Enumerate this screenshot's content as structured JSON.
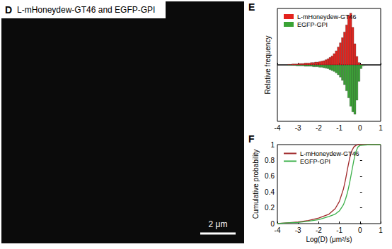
{
  "panel_d": {
    "label": "D",
    "title": "L-mHoneydew-GT46 and EGFP-GPI",
    "scale_bar": "2 μm"
  },
  "chart_data": [
    {
      "type": "histogram",
      "annotations": [
        "E"
      ],
      "y_label": "Relative frequency",
      "bins": [
        -3.5,
        -3.4,
        -3.3,
        -3.2,
        -3.1,
        -3.0,
        -2.9,
        -2.8,
        -2.7,
        -2.6,
        -2.5,
        -2.4,
        -2.3,
        -2.2,
        -2.1,
        -2.0,
        -1.9,
        -1.8,
        -1.7,
        -1.6,
        -1.5,
        -1.4,
        -1.3,
        -1.2,
        -1.1,
        -1.0,
        -0.9,
        -0.8,
        -0.7,
        -0.6,
        -0.5,
        -0.4,
        -0.3,
        -0.2,
        -0.1,
        0.0,
        0.1,
        0.2,
        0.3
      ],
      "series": [
        {
          "name": "L-mHoneydew-GT46",
          "color": "#e3231d",
          "values": [
            0.001,
            0.001,
            0.002,
            0.002,
            0.002,
            0.003,
            0.003,
            0.003,
            0.004,
            0.004,
            0.004,
            0.005,
            0.005,
            0.006,
            0.006,
            0.007,
            0.008,
            0.009,
            0.011,
            0.013,
            0.016,
            0.019,
            0.024,
            0.03,
            0.038,
            0.047,
            0.058,
            0.07,
            0.085,
            0.105,
            0.11,
            0.08,
            0.045,
            0.018,
            0.005,
            0.001,
            0,
            0
          ]
        },
        {
          "name": "EGFP-GPI",
          "color": "#3aa335",
          "values": [
            0.001,
            0.001,
            0.001,
            0.001,
            0.002,
            0.002,
            0.002,
            0.002,
            0.003,
            0.003,
            0.003,
            0.003,
            0.004,
            0.004,
            0.004,
            0.005,
            0.005,
            0.006,
            0.007,
            0.008,
            0.01,
            0.012,
            0.014,
            0.017,
            0.021,
            0.026,
            0.033,
            0.042,
            0.055,
            0.07,
            0.088,
            0.1,
            0.105,
            0.075,
            0.035,
            0.008,
            0.002,
            0
          ]
        }
      ],
      "xlim": [
        -4,
        1
      ],
      "xticks": [
        -4,
        -3,
        -2,
        -1,
        0,
        1
      ],
      "ylim": [
        0,
        0.12
      ],
      "tick_labels": "x",
      "legend": "upper left"
    },
    {
      "type": "line",
      "annotations": [
        "F"
      ],
      "x_label": "Log(D) (μm²/s)",
      "y_label": "Cumulative probability",
      "series": [
        {
          "name": "L-mHoneydew-GT46",
          "color": "#a0282a",
          "x": [
            -4,
            -3.5,
            -3,
            -2.5,
            -2,
            -1.5,
            -1.2,
            -1,
            -0.8,
            -0.7,
            -0.6,
            -0.5,
            -0.4,
            -0.3,
            -0.2,
            -0.1,
            0,
            0.5,
            1
          ],
          "values": [
            0,
            0.01,
            0.02,
            0.04,
            0.07,
            0.12,
            0.19,
            0.28,
            0.44,
            0.56,
            0.7,
            0.83,
            0.92,
            0.97,
            0.99,
            1,
            1,
            1,
            1
          ]
        },
        {
          "name": "EGFP-GPI",
          "color": "#3cb04a",
          "x": [
            -4,
            -3.5,
            -3,
            -2.5,
            -2,
            -1.5,
            -1.2,
            -1,
            -0.8,
            -0.7,
            -0.6,
            -0.5,
            -0.4,
            -0.3,
            -0.2,
            -0.1,
            0,
            0.5,
            1
          ],
          "values": [
            0,
            0.01,
            0.015,
            0.03,
            0.05,
            0.09,
            0.12,
            0.16,
            0.24,
            0.31,
            0.4,
            0.52,
            0.66,
            0.8,
            0.91,
            0.97,
            0.99,
            1,
            1
          ]
        }
      ],
      "xlim": [
        -4,
        1
      ],
      "xticks": [
        -4,
        -3,
        -2,
        -1,
        0,
        1
      ],
      "ylim": [
        0,
        1
      ],
      "yticks": [
        0,
        0.2,
        0.4,
        0.6,
        0.8,
        1
      ],
      "legend": "upper left"
    }
  ]
}
